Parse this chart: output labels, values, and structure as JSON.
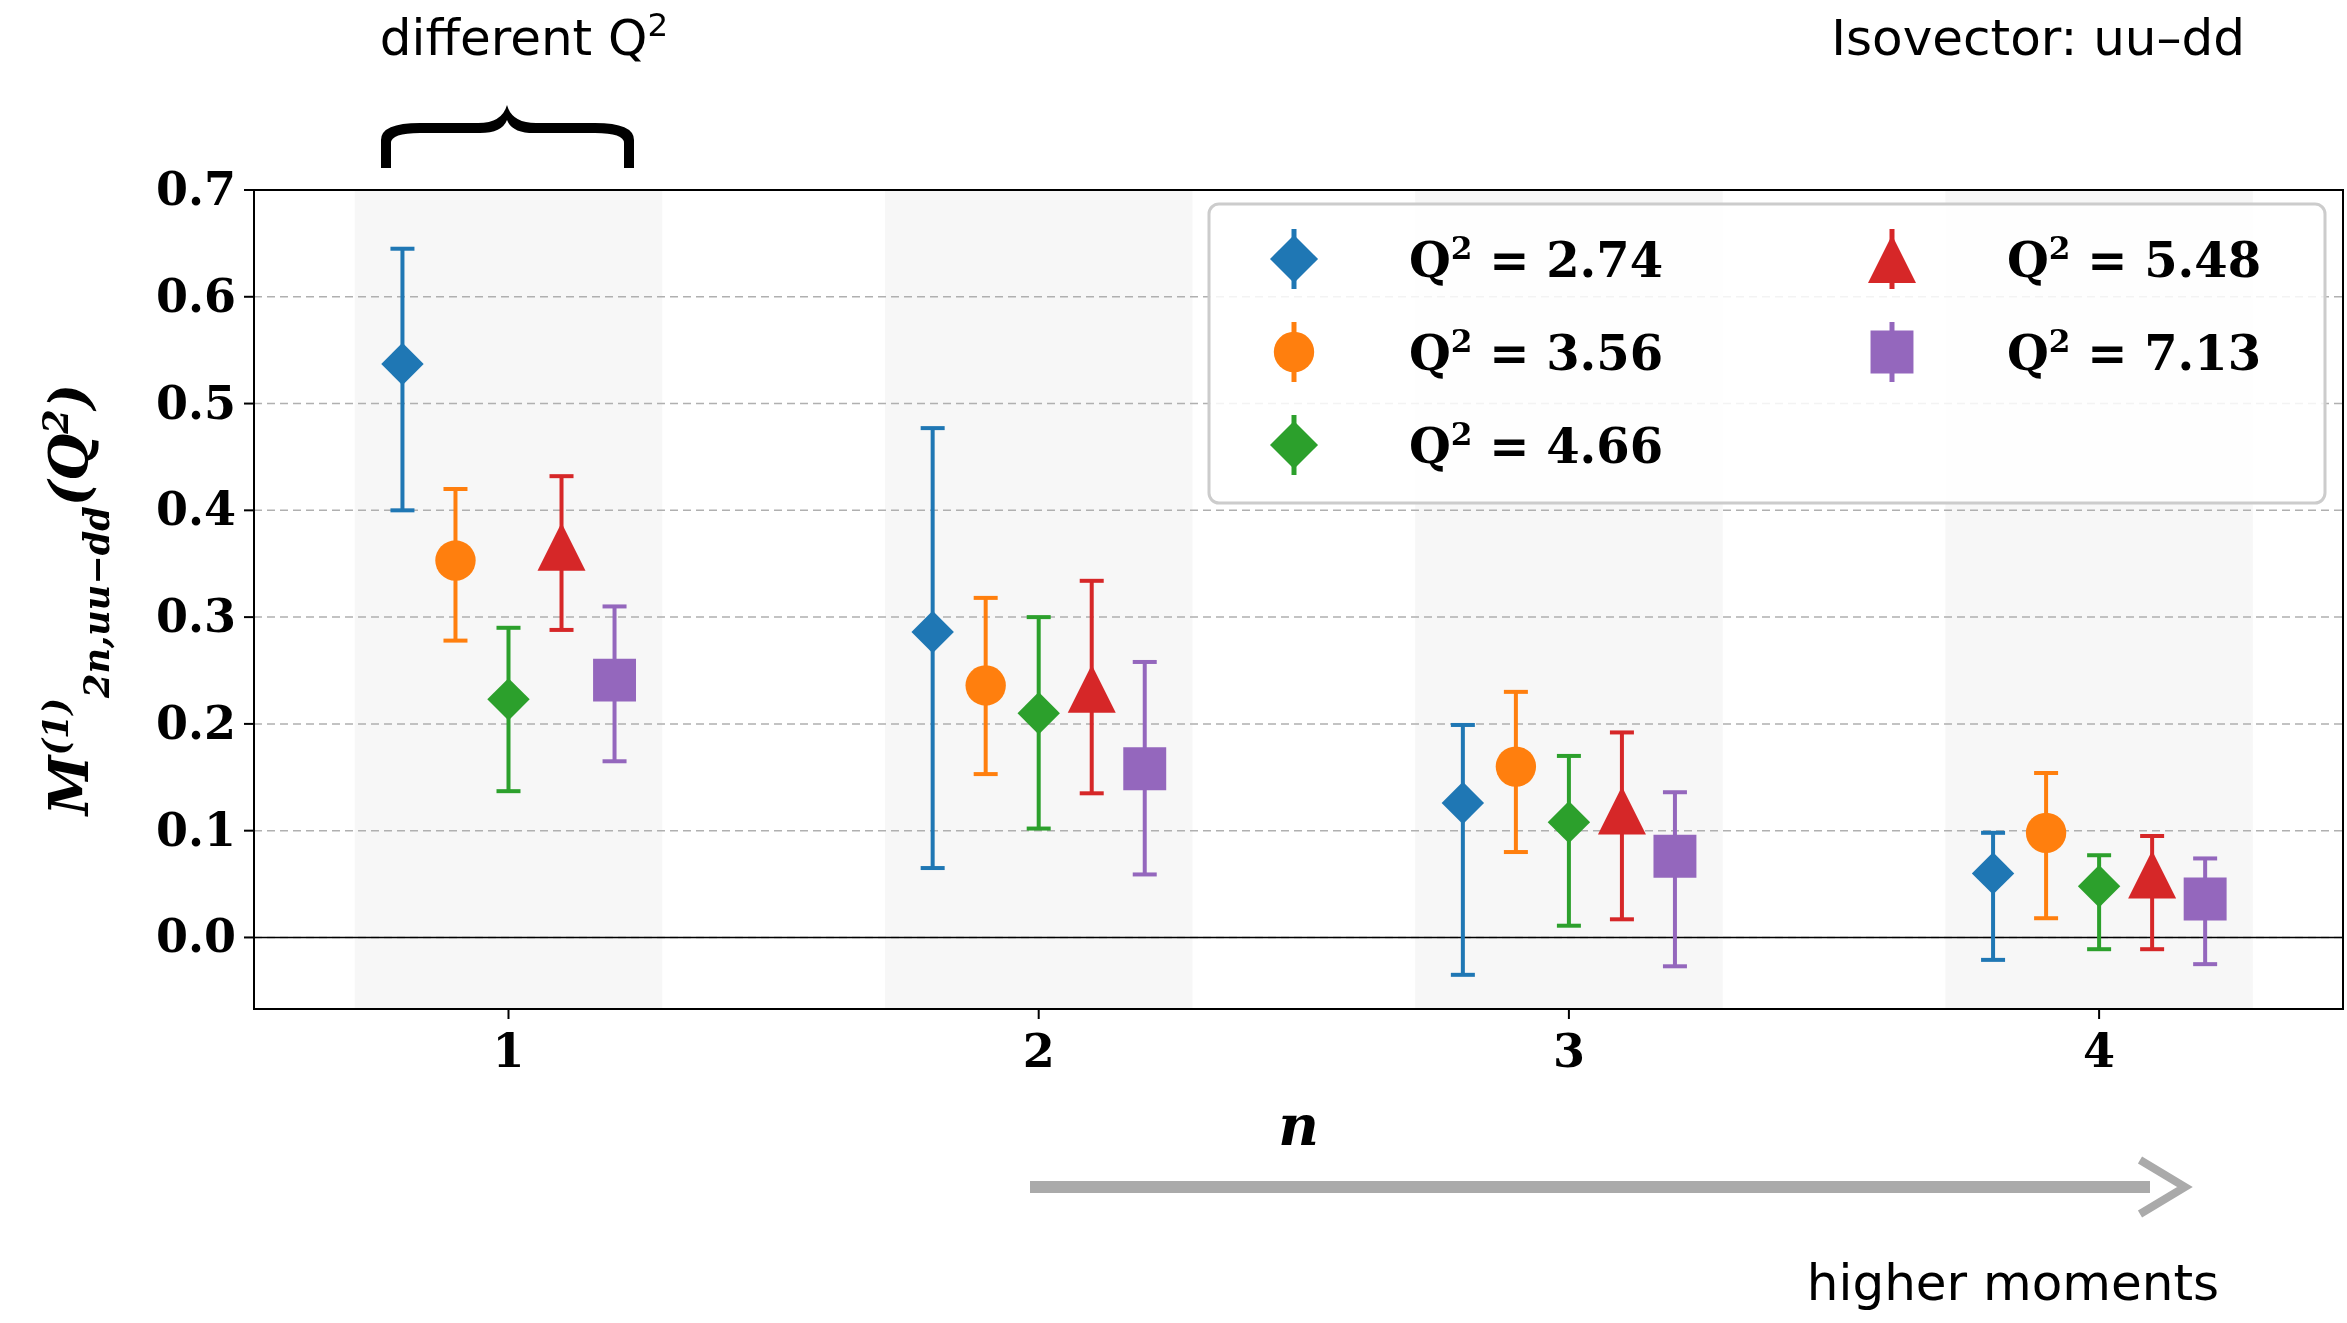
{
  "chart_data": {
    "type": "scatter",
    "xlabel": "n",
    "ylabel": "M$^{(1)}$$_{2n,uu−dd}$(Q$^{2}$)",
    "annotations": [
      "different Q$^{2}$",
      "Isovector: uu–dd",
      "higher moments"
    ],
    "xlim": [
      0.52,
      4.46
    ],
    "ylim": [
      -0.067,
      0.7
    ],
    "xticks": [
      1,
      2,
      3,
      4
    ],
    "yticks": [
      {
        "value": 0,
        "label": "0.0"
      },
      0.1,
      0.2,
      0.3,
      0.4,
      0.5,
      0.6,
      0.7
    ],
    "grid": "y",
    "legend": "top right",
    "ref_lines": [
      {
        "axis": "y",
        "value": 0,
        "color": "#000000",
        "line_style": "solid"
      }
    ],
    "bands": [
      {
        "axis": "x",
        "from": 0.71,
        "to": 1.29,
        "color": "#f7f7f7"
      },
      {
        "axis": "x",
        "from": 1.71,
        "to": 2.29,
        "color": "#f7f7f7"
      },
      {
        "axis": "x",
        "from": 2.71,
        "to": 3.29,
        "color": "#f7f7f7"
      },
      {
        "axis": "x",
        "from": 3.71,
        "to": 4.29,
        "color": "#f7f7f7"
      }
    ],
    "series": [
      {
        "name": "Q$^{2}$ = 2.74",
        "color": "#1f77b4",
        "marker": "diamond",
        "x": [
          0.8,
          1.8,
          2.8,
          3.8
        ],
        "values": [
          0.537,
          0.286,
          0.126,
          0.06
        ],
        "errors": [
          [
            0.4,
            0.645
          ],
          [
            0.065,
            0.477
          ],
          [
            -0.035,
            0.199
          ],
          [
            -0.021,
            0.098
          ]
        ]
      },
      {
        "name": "Q$^{2}$ = 3.56",
        "color": "#ff7f0e",
        "marker": "circle",
        "x": [
          0.9,
          1.9,
          2.9,
          3.9
        ],
        "values": [
          0.353,
          0.236,
          0.16,
          0.098
        ],
        "errors": [
          [
            0.278,
            0.42
          ],
          [
            0.153,
            0.318
          ],
          [
            0.08,
            0.23
          ],
          [
            0.018,
            0.154
          ]
        ]
      },
      {
        "name": "Q$^{2}$ = 4.66",
        "color": "#2ca02c",
        "marker": "diamond",
        "x": [
          1,
          2,
          3,
          4
        ],
        "values": [
          0.223,
          0.21,
          0.108,
          0.048
        ],
        "errors": [
          [
            0.137,
            0.29
          ],
          [
            0.102,
            0.3
          ],
          [
            0.011,
            0.17
          ],
          [
            -0.011,
            0.077
          ]
        ]
      },
      {
        "name": "Q$^{2}$ = 5.48",
        "color": "#d62728",
        "marker": "triangle",
        "x": [
          1.1,
          2.1,
          3.1,
          4.1
        ],
        "values": [
          0.366,
          0.233,
          0.119,
          0.059
        ],
        "errors": [
          [
            0.288,
            0.432
          ],
          [
            0.135,
            0.334
          ],
          [
            0.017,
            0.192
          ],
          [
            -0.011,
            0.095
          ]
        ]
      },
      {
        "name": "Q$^{2}$ = 7.13",
        "color": "#9467bd",
        "marker": "square",
        "x": [
          1.2,
          2.2,
          3.2,
          4.2
        ],
        "values": [
          0.241,
          0.158,
          0.076,
          0.036
        ],
        "errors": [
          [
            0.165,
            0.31
          ],
          [
            0.059,
            0.258
          ],
          [
            -0.027,
            0.136
          ],
          [
            -0.025,
            0.074
          ]
        ]
      }
    ]
  }
}
